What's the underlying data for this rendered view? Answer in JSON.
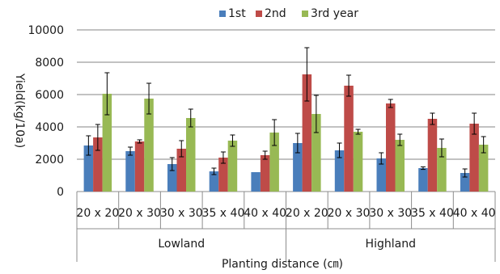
{
  "chart_data": {
    "type": "bar",
    "title": "",
    "xlabel": "Planting distance (㎝)",
    "ylabel": "Yield(kg/10a)",
    "ylim": [
      0,
      10000
    ],
    "yticks": [
      0,
      2000,
      4000,
      6000,
      8000,
      10000
    ],
    "grid": true,
    "legend_position": "top",
    "groups": [
      {
        "label": "Lowland",
        "categories": [
          "20 x 20",
          "20 x 30",
          "30 x 30",
          "35 x 40",
          "40 x 40"
        ]
      },
      {
        "label": "Highland",
        "categories": [
          "20 x 20",
          "20 x 30",
          "30 x 30",
          "35 x 40",
          "40 x 40"
        ]
      }
    ],
    "categories": [
      "20 x 20",
      "20 x 30",
      "30 x 30",
      "35 x 40",
      "40 x 40",
      "20 x 20",
      "20 x 30",
      "30 x 30",
      "35 x 40",
      "40 x 40"
    ],
    "series": [
      {
        "name": "1st",
        "color": "#4a7ebb",
        "values": [
          2850,
          2500,
          1700,
          1250,
          1200,
          3000,
          2550,
          2050,
          1450,
          1150
        ],
        "errors": [
          600,
          250,
          400,
          200,
          0,
          600,
          450,
          350,
          80,
          250
        ]
      },
      {
        "name": "2nd",
        "color": "#be4b48",
        "values": [
          3350,
          3100,
          2650,
          2100,
          2250,
          7250,
          6550,
          5450,
          4500,
          4200
        ],
        "errors": [
          800,
          100,
          500,
          350,
          250,
          1650,
          650,
          250,
          350,
          650
        ]
      },
      {
        "name": "3rd year",
        "color": "#98b954",
        "values": [
          6050,
          5750,
          4550,
          3150,
          3650,
          4800,
          3700,
          3200,
          2700,
          2900
        ],
        "errors": [
          1300,
          950,
          550,
          350,
          800,
          1150,
          150,
          350,
          550,
          500
        ]
      }
    ]
  }
}
